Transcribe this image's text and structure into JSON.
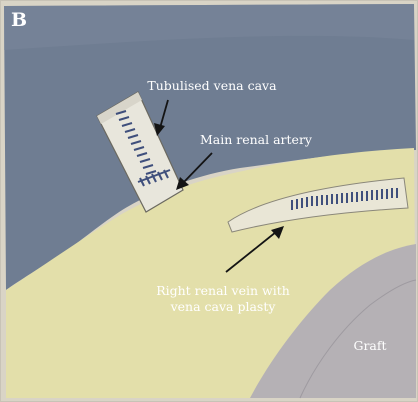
{
  "figure": {
    "panel_letter": "B",
    "labels": {
      "tubulised_vena_cava": "Tubulised vena cava",
      "main_renal_artery": "Main renal artery",
      "right_renal_vein_line1": "Right renal vein with",
      "right_renal_vein_line2": "vena cava plasty",
      "graft": "Graft"
    },
    "colors": {
      "background_blue": "#6f7d92",
      "paper": "#d9d4c6",
      "yellow": "#e3dfaa",
      "graft_grey": "#b5b1b5",
      "vessel_light": "#e8e6dc",
      "suture_blue": "#3f4f7c",
      "arrow": "#141414"
    }
  }
}
